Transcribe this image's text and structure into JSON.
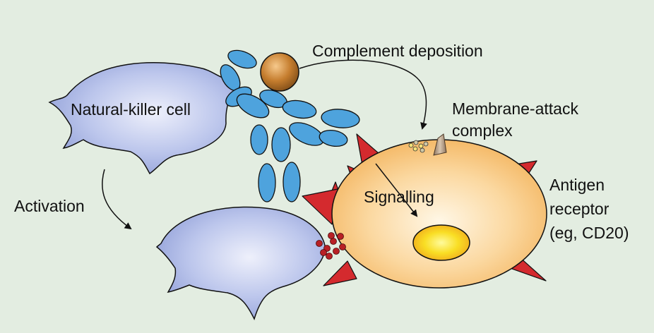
{
  "labels": {
    "nk_cell": "Natural-killer cell",
    "complement_deposition": "Complement deposition",
    "membrane_attack_line1": "Membrane-attack",
    "membrane_attack_line2": "complex",
    "antigen_line1": "Antigen",
    "antigen_line2": "receptor",
    "antigen_line3": "(eg, CD20)",
    "signalling": "Signalling",
    "activation": "Activation"
  },
  "colors": {
    "background": "#e3ede1",
    "nk_cell": "#a8b6e2",
    "antibody": "#4ea3dd",
    "complement_sphere": "#b8742c",
    "target_cell": "#f6c77a",
    "nucleus": "#f7d22a",
    "antigen_receptor": "#d42a2e",
    "granules": "#b82025"
  }
}
